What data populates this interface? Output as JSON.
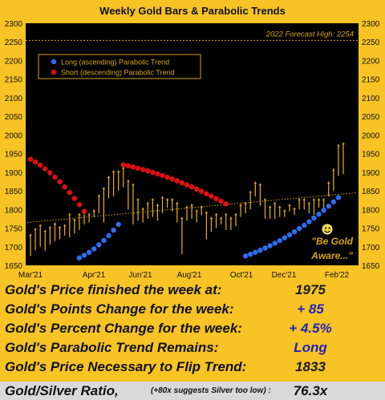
{
  "chart_data": {
    "type": "line",
    "title": "Weekly Gold Bars & Parabolic Trends",
    "x_labels": [
      "Mar'21",
      "Apr'21",
      "Jun'21",
      "Aug'21",
      "Oct'21",
      "Dec'21",
      "Feb'22"
    ],
    "ylim": [
      1650,
      2300
    ],
    "y_ticks": [
      1650,
      1700,
      1750,
      1800,
      1850,
      1900,
      1950,
      2000,
      2050,
      2100,
      2150,
      2200,
      2250,
      2300
    ],
    "forecast": {
      "label": "2022 Forecast High: 2254",
      "value": 2254
    },
    "legend": {
      "long": "Long (ascending) Parabolic Trend",
      "short": "Short (descending) Parabolic Trend"
    },
    "annotation": {
      "line1": "\"Be Gold",
      "line2": "Aware...\""
    },
    "colors": {
      "plot_bg": "#000000",
      "bars": "#e8b416",
      "long": "#2f6cf0",
      "short": "#e01010",
      "trendline": "#d8a415",
      "text": "#d8a415"
    },
    "trendline": {
      "start": 1765,
      "end": 1845
    },
    "bars": [
      [
        1675,
        1735
      ],
      [
        1690,
        1750
      ],
      [
        1700,
        1760
      ],
      [
        1690,
        1745
      ],
      [
        1705,
        1755
      ],
      [
        1715,
        1765
      ],
      [
        1720,
        1755
      ],
      [
        1730,
        1760
      ],
      [
        1725,
        1790
      ],
      [
        1735,
        1775
      ],
      [
        1745,
        1790
      ],
      [
        1760,
        1800
      ],
      [
        1765,
        1790
      ],
      [
        1780,
        1800
      ],
      [
        1790,
        1840
      ],
      [
        1765,
        1860
      ],
      [
        1830,
        1890
      ],
      [
        1835,
        1905
      ],
      [
        1850,
        1905
      ],
      [
        1860,
        1915
      ],
      [
        1800,
        1880
      ],
      [
        1760,
        1870
      ],
      [
        1770,
        1830
      ],
      [
        1765,
        1805
      ],
      [
        1775,
        1820
      ],
      [
        1780,
        1830
      ],
      [
        1770,
        1815
      ],
      [
        1790,
        1835
      ],
      [
        1805,
        1830
      ],
      [
        1795,
        1830
      ],
      [
        1765,
        1820
      ],
      [
        1680,
        1780
      ],
      [
        1770,
        1810
      ],
      [
        1775,
        1815
      ],
      [
        1765,
        1800
      ],
      [
        1785,
        1810
      ],
      [
        1720,
        1795
      ],
      [
        1740,
        1780
      ],
      [
        1750,
        1790
      ],
      [
        1760,
        1780
      ],
      [
        1745,
        1790
      ],
      [
        1745,
        1780
      ],
      [
        1755,
        1790
      ],
      [
        1780,
        1815
      ],
      [
        1790,
        1820
      ],
      [
        1800,
        1850
      ],
      [
        1835,
        1875
      ],
      [
        1810,
        1870
      ],
      [
        1775,
        1830
      ],
      [
        1775,
        1810
      ],
      [
        1775,
        1820
      ],
      [
        1780,
        1810
      ],
      [
        1780,
        1800
      ],
      [
        1795,
        1815
      ],
      [
        1785,
        1805
      ],
      [
        1800,
        1830
      ],
      [
        1800,
        1830
      ],
      [
        1790,
        1820
      ],
      [
        1785,
        1830
      ],
      [
        1805,
        1830
      ],
      [
        1800,
        1830
      ],
      [
        1835,
        1875
      ],
      [
        1850,
        1910
      ],
      [
        1890,
        1975
      ],
      [
        1895,
        1980
      ]
    ],
    "long_trend": [
      {
        "from": 10,
        "to": 18,
        "start": 1670,
        "end": 1760
      },
      {
        "from": 44,
        "to": 63,
        "start": 1675,
        "end": 1832
      }
    ],
    "short_trend": [
      {
        "from": 0,
        "to": 11,
        "start": 1935,
        "end": 1795
      },
      {
        "from": 19,
        "to": 40,
        "start": 1920,
        "end": 1815
      }
    ]
  },
  "stats": [
    {
      "label": "Gold's Price finished the week at:",
      "value": "1975",
      "blue": false
    },
    {
      "label": "Gold's Points Change for the week:",
      "value": "+ 85",
      "blue": true
    },
    {
      "label": "Gold's Percent Change for the week:",
      "value": "+ 4.5%",
      "blue": true
    },
    {
      "label": "Gold's Parabolic Trend Remains:",
      "value": "Long",
      "blue": true
    },
    {
      "label": "Gold's Price Necessary to Flip Trend:",
      "value": "1833",
      "blue": false
    }
  ],
  "ratio": {
    "label": "Gold/Silver Ratio,",
    "note": "(+80x suggests Silver too low)",
    "colon": ":",
    "value": "76.3x"
  }
}
